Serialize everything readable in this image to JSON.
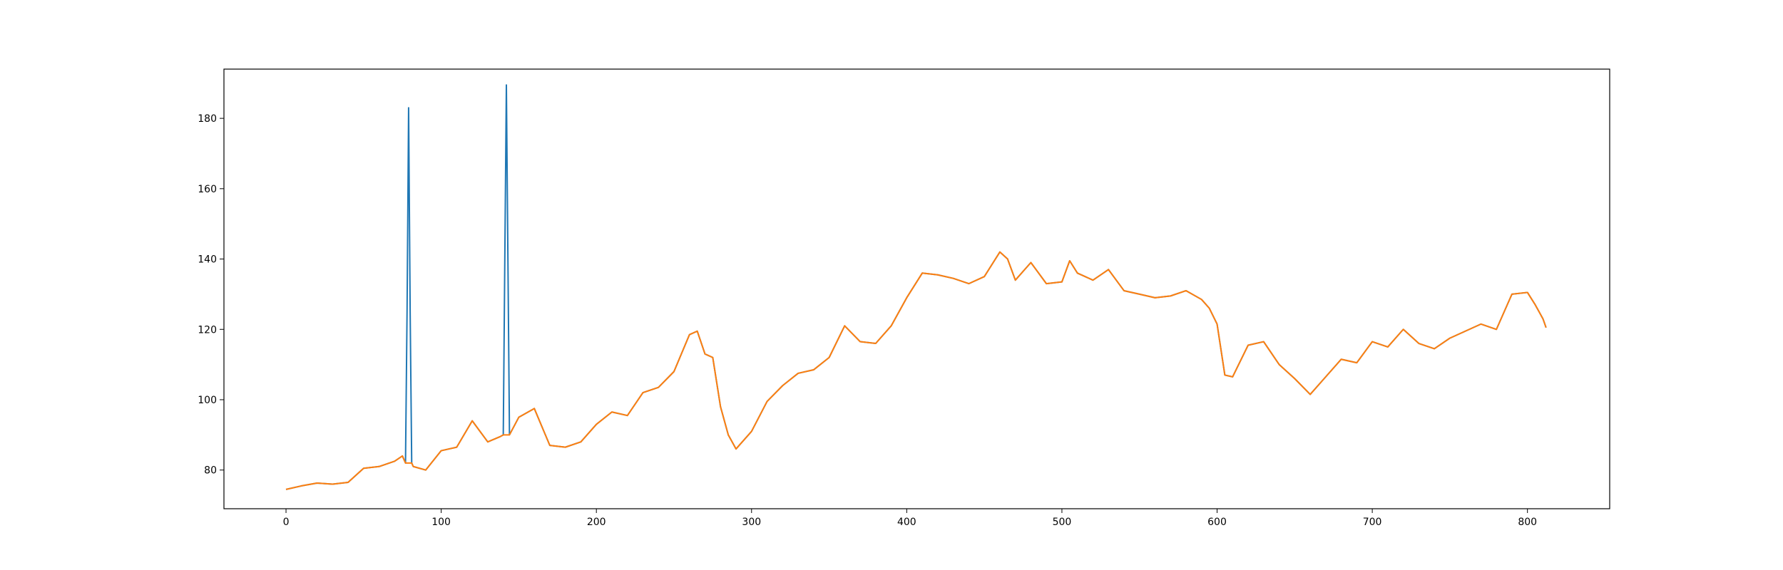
{
  "chart_data": {
    "type": "line",
    "title": "",
    "xlabel": "",
    "ylabel": "",
    "xlim": [
      -40,
      853
    ],
    "ylim": [
      69,
      194
    ],
    "grid": false,
    "xticks": [
      0,
      100,
      200,
      300,
      400,
      500,
      600,
      700,
      800
    ],
    "yticks": [
      80,
      100,
      120,
      140,
      160,
      180
    ],
    "series": [
      {
        "color": "#1f77b4",
        "x": [
          0,
          10,
          20,
          30,
          40,
          50,
          60,
          70,
          75,
          77,
          78,
          79,
          80,
          81,
          82,
          90,
          100,
          110,
          120,
          130,
          138,
          140,
          141,
          142,
          143,
          144,
          150,
          160,
          170,
          180,
          190,
          200,
          210,
          220,
          230,
          240,
          250,
          260,
          265,
          270,
          275,
          280,
          285,
          290,
          300,
          310,
          320,
          330,
          340,
          350,
          360,
          370,
          380,
          390,
          400,
          410,
          420,
          430,
          440,
          450,
          460,
          465,
          470,
          480,
          490,
          500,
          505,
          510,
          520,
          530,
          540,
          550,
          560,
          570,
          580,
          590,
          595,
          600,
          605,
          610,
          620,
          630,
          640,
          650,
          660,
          670,
          680,
          690,
          700,
          710,
          720,
          730,
          740,
          750,
          760,
          770,
          780,
          790,
          800,
          805,
          810,
          812
        ],
        "y": [
          74.5,
          75.5,
          76.3,
          76,
          76.5,
          80.5,
          81,
          82.5,
          84,
          82,
          125,
          183,
          125,
          82,
          81,
          80,
          85.5,
          86.5,
          94,
          88,
          89.5,
          90,
          140,
          189.5,
          140,
          90,
          95,
          97.5,
          87,
          86.5,
          88,
          93,
          96.5,
          95.5,
          102,
          103.5,
          108,
          118.5,
          119.5,
          113,
          112,
          98,
          90,
          86,
          91,
          99.5,
          104,
          107.5,
          108.5,
          112,
          121,
          116.5,
          116,
          121,
          129,
          136,
          135.5,
          134.5,
          133,
          135,
          142,
          140,
          134,
          139,
          133,
          133.5,
          139.5,
          136,
          134,
          137,
          131,
          130,
          129,
          129.5,
          131,
          128.5,
          126,
          121.5,
          107,
          106.5,
          115.5,
          116.5,
          110,
          106,
          101.5,
          106.5,
          111.5,
          110.5,
          116.5,
          115,
          120,
          116,
          114.5,
          117.5,
          119.5,
          121.5,
          120,
          130,
          130.5,
          127,
          123,
          120.5
        ]
      },
      {
        "color": "#ff7f0e",
        "x": [
          0,
          10,
          20,
          30,
          40,
          50,
          60,
          70,
          75,
          77,
          78,
          79,
          80,
          81,
          82,
          90,
          100,
          110,
          120,
          130,
          138,
          140,
          141,
          142,
          143,
          144,
          150,
          160,
          170,
          180,
          190,
          200,
          210,
          220,
          230,
          240,
          250,
          260,
          265,
          270,
          275,
          280,
          285,
          290,
          300,
          310,
          320,
          330,
          340,
          350,
          360,
          370,
          380,
          390,
          400,
          410,
          420,
          430,
          440,
          450,
          460,
          465,
          470,
          480,
          490,
          500,
          505,
          510,
          520,
          530,
          540,
          550,
          560,
          570,
          580,
          590,
          595,
          600,
          605,
          610,
          620,
          630,
          640,
          650,
          660,
          670,
          680,
          690,
          700,
          710,
          720,
          730,
          740,
          750,
          760,
          770,
          780,
          790,
          800,
          805,
          810,
          812
        ],
        "y": [
          74.5,
          75.5,
          76.3,
          76,
          76.5,
          80.5,
          81,
          82.5,
          84,
          82,
          82,
          82,
          82,
          82,
          81,
          80,
          85.5,
          86.5,
          94,
          88,
          89.5,
          90,
          90,
          90,
          90,
          90,
          95,
          97.5,
          87,
          86.5,
          88,
          93,
          96.5,
          95.5,
          102,
          103.5,
          108,
          118.5,
          119.5,
          113,
          112,
          98,
          90,
          86,
          91,
          99.5,
          104,
          107.5,
          108.5,
          112,
          121,
          116.5,
          116,
          121,
          129,
          136,
          135.5,
          134.5,
          133,
          135,
          142,
          140,
          134,
          139,
          133,
          133.5,
          139.5,
          136,
          134,
          137,
          131,
          130,
          129,
          129.5,
          131,
          128.5,
          126,
          121.5,
          107,
          106.5,
          115.5,
          116.5,
          110,
          106,
          101.5,
          106.5,
          111.5,
          110.5,
          116.5,
          115,
          120,
          116,
          114.5,
          117.5,
          119.5,
          121.5,
          120,
          130,
          130.5,
          127,
          123,
          120.5
        ]
      }
    ]
  }
}
